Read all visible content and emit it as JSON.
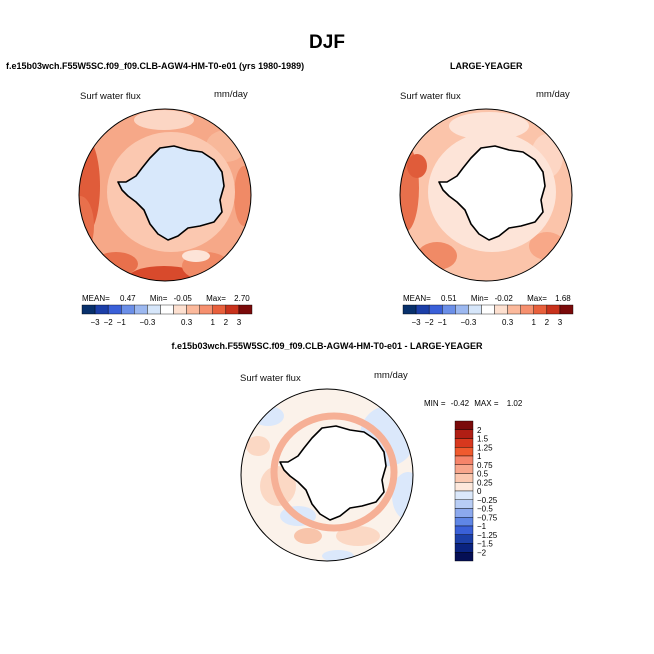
{
  "page": {
    "title": "DJF"
  },
  "panels": [
    {
      "id": "test",
      "header": "f.e15b03wch.F55W5SC.f09_f09.CLB-AGW4-HM-T0-e01 (yrs 1980-1989)",
      "variable": "Surf water flux",
      "units": "mm/day",
      "stats": {
        "mean_label": "MEAN=",
        "mean": "0.47",
        "min_label": "Min=",
        "min": "-0.05",
        "max_label": "Max=",
        "max": "2.70"
      }
    },
    {
      "id": "obs",
      "header": "LARGE-YEAGER",
      "variable": "Surf water flux",
      "units": "mm/day",
      "stats": {
        "mean_label": "MEAN=",
        "mean": "0.51",
        "min_label": "Min=",
        "min": "-0.02",
        "max_label": "Max=",
        "max": "1.68"
      }
    },
    {
      "id": "diff",
      "header": "f.e15b03wch.F55W5SC.f09_f09.CLB-AGW4-HM-T0-e01 - LARGE-YEAGER",
      "variable": "Surf water flux",
      "units": "mm/day",
      "stats": {
        "min_label": "MIN =",
        "min": "-0.42",
        "max_label": "MAX =",
        "max": "1.02"
      }
    }
  ],
  "chart_data": [
    {
      "type": "heatmap",
      "title": "f.e15b03wch.F55W5SC.f09_f09.CLB-AGW4-HM-T0-e01 (yrs 1980-1989)",
      "subtitle": "Surf water flux (mm/day)",
      "projection": "south polar stereographic",
      "summary": {
        "mean": 0.47,
        "min": -0.05,
        "max": 2.7
      },
      "colorbar": {
        "orientation": "horizontal",
        "tick_labels": [
          "−3",
          "−2",
          "−1",
          "−0.3",
          "0.3",
          "1",
          "2",
          "3"
        ],
        "colors": [
          "#08306b",
          "#1c3fa8",
          "#3a60d8",
          "#6b8fe8",
          "#9cb8f0",
          "#d6e6fa",
          "#ffffff",
          "#fde0d0",
          "#fbb99c",
          "#f6906f",
          "#e8603c",
          "#c8321c",
          "#7a0a0a"
        ]
      }
    },
    {
      "type": "heatmap",
      "title": "LARGE-YEAGER",
      "subtitle": "Surf water flux (mm/day)",
      "projection": "south polar stereographic",
      "summary": {
        "mean": 0.51,
        "min": -0.02,
        "max": 1.68
      },
      "colorbar": {
        "orientation": "horizontal",
        "tick_labels": [
          "−3",
          "−2",
          "−1",
          "−0.3",
          "0.3",
          "1",
          "2",
          "3"
        ],
        "colors": [
          "#08306b",
          "#1c3fa8",
          "#3a60d8",
          "#6b8fe8",
          "#9cb8f0",
          "#d6e6fa",
          "#ffffff",
          "#fde0d0",
          "#fbb99c",
          "#f6906f",
          "#e8603c",
          "#c8321c",
          "#7a0a0a"
        ]
      }
    },
    {
      "type": "heatmap",
      "title": "f.e15b03wch.F55W5SC.f09_f09.CLB-AGW4-HM-T0-e01 - LARGE-YEAGER",
      "subtitle": "Surf water flux (mm/day)",
      "projection": "south polar stereographic",
      "summary": {
        "min": -0.42,
        "max": 1.02
      },
      "colorbar": {
        "orientation": "vertical",
        "tick_labels": [
          "2",
          "1.5",
          "1.25",
          "1",
          "0.75",
          "0.5",
          "0.25",
          "0",
          "−0.25",
          "−0.5",
          "−0.75",
          "−1",
          "−1.25",
          "−1.5",
          "−2"
        ],
        "colors": [
          "#7a0a0a",
          "#b01e14",
          "#d8381e",
          "#f05a2e",
          "#f6846a",
          "#f8a68c",
          "#fbc8b0",
          "#fde8dc",
          "#dbe8fb",
          "#b8cdf5",
          "#8ca9ee",
          "#5f86e6",
          "#3a60d8",
          "#1c3fa8",
          "#0a2380",
          "#050f55"
        ]
      }
    }
  ]
}
